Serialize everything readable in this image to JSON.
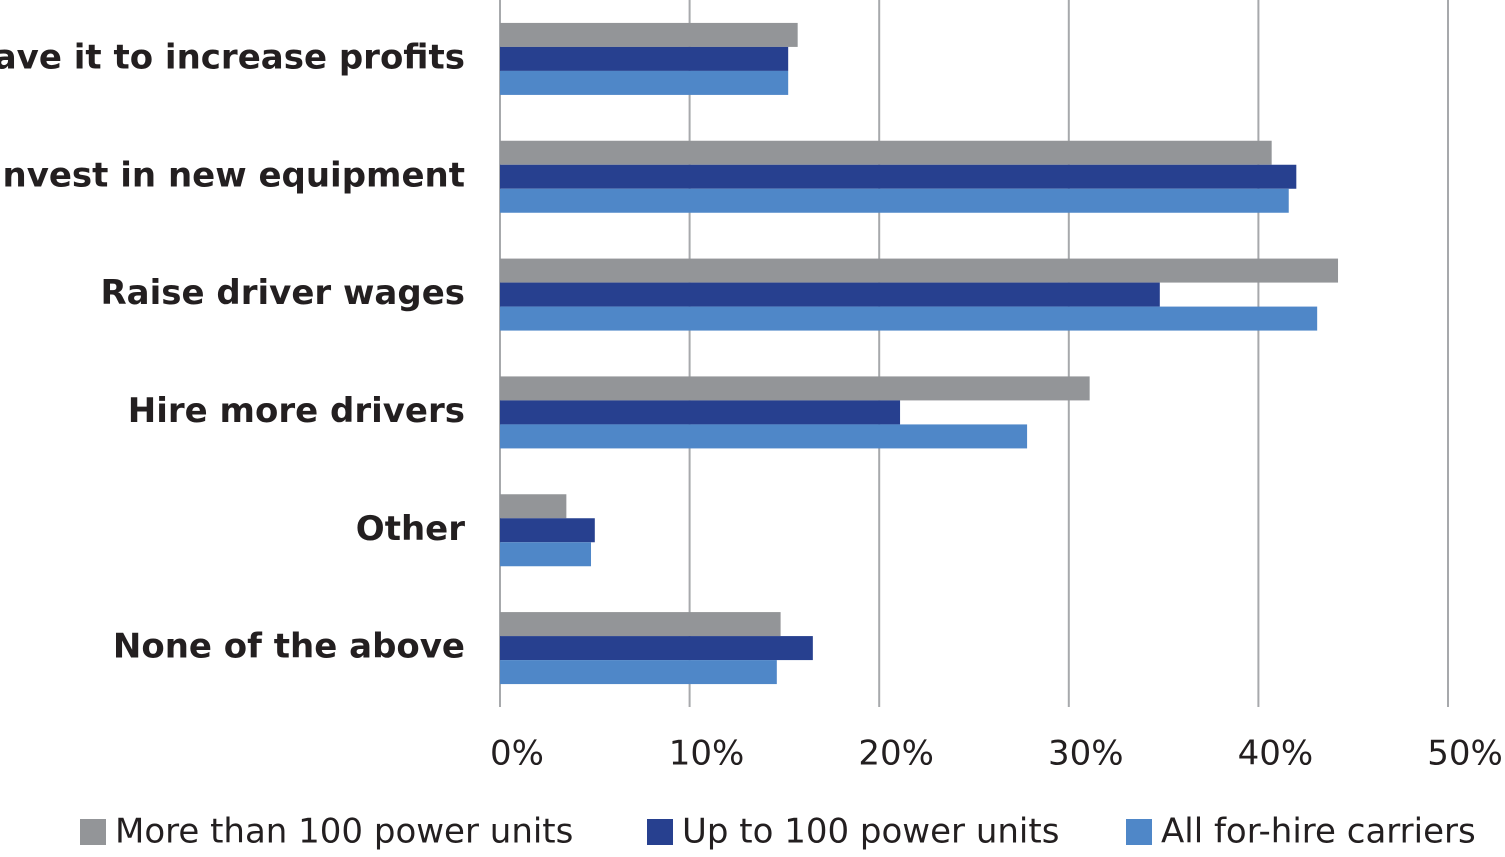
{
  "chart_data": {
    "type": "hbar",
    "categories": [
      "Save it to increase profits",
      "Invest in new equipment",
      "Raise driver wages",
      "Hire more drivers",
      "Other",
      "None of the above"
    ],
    "series": [
      {
        "name": "More than 100 power units",
        "color": "#939598",
        "values": [
          15.7,
          40.7,
          44.2,
          31.1,
          3.5,
          14.8
        ]
      },
      {
        "name": "Up to 100 power units",
        "color": "#27408f",
        "values": [
          15.2,
          42.0,
          34.8,
          21.1,
          5.0,
          16.5
        ]
      },
      {
        "name": "All for-hire carriers",
        "color": "#4f87c8",
        "values": [
          15.2,
          41.6,
          43.1,
          27.8,
          4.8,
          14.6
        ]
      }
    ],
    "xlim": [
      0,
      50
    ],
    "xticks": [
      {
        "value": 0,
        "label": "0%"
      },
      {
        "value": 10,
        "label": "10%"
      },
      {
        "value": 20,
        "label": "20%"
      },
      {
        "value": 30,
        "label": "30%"
      },
      {
        "value": 40,
        "label": "40%"
      },
      {
        "value": 50,
        "label": "50%"
      }
    ],
    "grid": true
  }
}
